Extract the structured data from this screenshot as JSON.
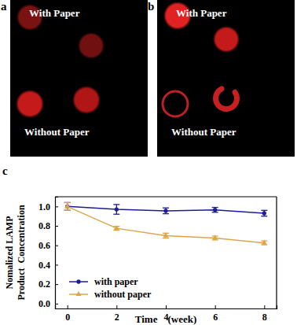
{
  "panels": [
    {
      "label": "a",
      "texts": [
        "With Paper",
        "Without Paper"
      ]
    },
    {
      "label": "b",
      "texts": [
        "With Paper",
        "Without Paper"
      ]
    },
    {
      "label": "c"
    }
  ],
  "chart_data": {
    "type": "line",
    "xlabel": "Time    (week)",
    "ylabel": [
      "Nomalized LAMP",
      "Product  Concentration"
    ],
    "x": [
      0,
      2,
      4,
      6,
      8
    ],
    "xlim": [
      -0.5,
      8.5
    ],
    "xticks": [
      0,
      2,
      4,
      6,
      8
    ],
    "ylim": [
      -0.05,
      1.1
    ],
    "yticks": [
      {
        "value": 0,
        "label": "0.0"
      },
      {
        "value": 0.2,
        "label": "0.2"
      },
      {
        "value": 0.4,
        "label": "0.4"
      },
      {
        "value": 0.6,
        "label": "0.6"
      },
      {
        "value": 0.8,
        "label": "0.8"
      },
      {
        "value": 1,
        "label": "1.0"
      }
    ],
    "grid": false,
    "legend": "lower left",
    "series": [
      {
        "name": "with paper",
        "color": "#1c1c9c",
        "marker": "circle",
        "line_style": "solid",
        "values": [
          1.0,
          0.97,
          0.955,
          0.965,
          0.93
        ],
        "errors": [
          0.04,
          0.05,
          0.03,
          0.025,
          0.03
        ]
      },
      {
        "name": "without paper",
        "color": "#e0a448",
        "marker": "triangle",
        "line_style": "solid",
        "values": [
          1.0,
          0.775,
          0.7,
          0.675,
          0.625
        ],
        "errors": [
          0.04,
          0.02,
          0.025,
          0.02,
          0.02
        ]
      }
    ]
  }
}
